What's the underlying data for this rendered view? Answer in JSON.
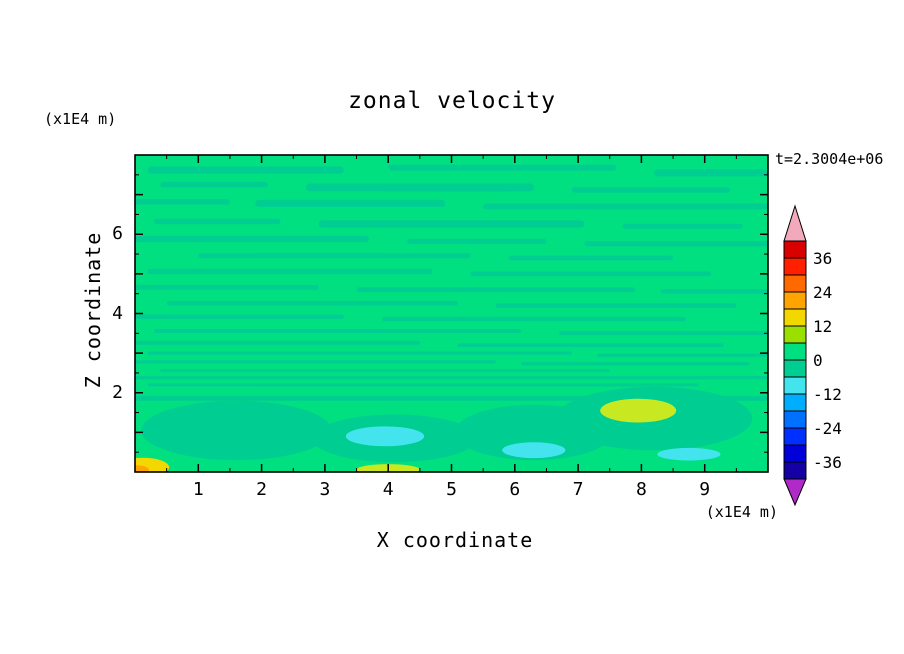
{
  "chart_data": {
    "type": "heatmap",
    "title": "zonal velocity",
    "xlabel": "X coordinate",
    "ylabel": "Z coordinate",
    "x_units": "(x1E4 m)",
    "y_units": "(x1E4 m)",
    "time_annotation": "t=2.3004e+06",
    "xlim": [
      0,
      10
    ],
    "ylim": [
      0,
      8
    ],
    "x_ticks": [
      1,
      2,
      3,
      4,
      5,
      6,
      7,
      8,
      9
    ],
    "y_ticks": [
      1,
      2,
      3,
      4,
      5,
      6,
      7
    ],
    "y_tick_labels": [
      2,
      4,
      6
    ],
    "contour_interval": 6,
    "grid": false,
    "legend_position": "right-colorbar",
    "colorbar": {
      "labels": [
        36,
        24,
        12,
        0,
        -12,
        -24,
        -36
      ],
      "segments": [
        {
          "range": [
            -42,
            -36
          ],
          "color": "#1500A5"
        },
        {
          "range": [
            -36,
            -30
          ],
          "color": "#0000D8"
        },
        {
          "range": [
            -30,
            -24
          ],
          "color": "#0030FF"
        },
        {
          "range": [
            -24,
            -18
          ],
          "color": "#0070FF"
        },
        {
          "range": [
            -18,
            -12
          ],
          "color": "#00AEFF"
        },
        {
          "range": [
            -12,
            -6
          ],
          "color": "#44E4EE"
        },
        {
          "range": [
            -6,
            0
          ],
          "color": "#00CD92"
        },
        {
          "range": [
            0,
            6
          ],
          "color": "#00E080"
        },
        {
          "range": [
            6,
            12
          ],
          "color": "#9ADF00"
        },
        {
          "range": [
            12,
            18
          ],
          "color": "#F2D800"
        },
        {
          "range": [
            18,
            24
          ],
          "color": "#FFA400"
        },
        {
          "range": [
            24,
            30
          ],
          "color": "#FF6A00"
        },
        {
          "range": [
            30,
            36
          ],
          "color": "#FF2000"
        },
        {
          "range": [
            36,
            42
          ],
          "color": "#D90000"
        }
      ],
      "arrow_low_color": "#B02AC8",
      "arrow_high_color": "#F2A9BC"
    },
    "field": {
      "description": "Zonal velocity field mostly near zero: base level 0..6 (green) with thin horizontal bands of -6..0 (teal-green) throughout; broader negative-band blobs below z=2 with small cyan (-12..-6) patches near the bottom; positive yellow (6..18) patches near x=8 z=1.5, near x=4 at the bottom edge, and at the bottom-left corner.",
      "base_value_range": [
        0,
        6
      ],
      "colors": {
        "base": "#00E080",
        "band": "#00CD92",
        "cyan": "#44E4EE",
        "yellow": "#C8E822",
        "yellow2": "#F2D800",
        "orange": "#FFA400"
      },
      "stripes": [
        [
          0.2,
          3.3,
          7.62,
          0.18
        ],
        [
          4.0,
          7.6,
          7.68,
          0.15
        ],
        [
          8.2,
          10,
          7.55,
          0.18
        ],
        [
          0.4,
          2.1,
          7.25,
          0.14
        ],
        [
          2.7,
          6.3,
          7.18,
          0.2
        ],
        [
          6.9,
          9.4,
          7.12,
          0.14
        ],
        [
          0.0,
          1.5,
          6.82,
          0.14
        ],
        [
          1.9,
          4.9,
          6.78,
          0.18
        ],
        [
          5.5,
          10,
          6.7,
          0.15
        ],
        [
          0.3,
          2.3,
          6.32,
          0.14
        ],
        [
          2.9,
          7.1,
          6.26,
          0.18
        ],
        [
          7.7,
          9.6,
          6.2,
          0.13
        ],
        [
          0.0,
          3.7,
          5.88,
          0.16
        ],
        [
          4.3,
          6.5,
          5.82,
          0.13
        ],
        [
          7.1,
          10,
          5.76,
          0.13
        ],
        [
          1.0,
          5.3,
          5.46,
          0.13
        ],
        [
          5.9,
          8.5,
          5.4,
          0.12
        ],
        [
          0.2,
          4.7,
          5.06,
          0.13
        ],
        [
          5.3,
          9.1,
          5.0,
          0.12
        ],
        [
          0.0,
          2.9,
          4.66,
          0.12
        ],
        [
          3.5,
          7.9,
          4.6,
          0.12
        ],
        [
          8.3,
          10,
          4.56,
          0.11
        ],
        [
          0.5,
          5.1,
          4.26,
          0.11
        ],
        [
          5.7,
          9.5,
          4.2,
          0.11
        ],
        [
          0.0,
          3.3,
          3.92,
          0.11
        ],
        [
          3.9,
          8.7,
          3.86,
          0.11
        ],
        [
          0.3,
          6.1,
          3.56,
          0.1
        ],
        [
          6.7,
          10,
          3.5,
          0.1
        ],
        [
          0.0,
          4.5,
          3.26,
          0.1
        ],
        [
          5.1,
          9.3,
          3.2,
          0.09
        ],
        [
          0.2,
          6.9,
          3.0,
          0.08
        ],
        [
          7.3,
          10,
          2.95,
          0.08
        ],
        [
          0.0,
          5.7,
          2.78,
          0.08
        ],
        [
          6.1,
          9.7,
          2.73,
          0.08
        ],
        [
          0.4,
          7.5,
          2.56,
          0.08
        ],
        [
          0.0,
          10,
          2.38,
          0.08
        ],
        [
          0.2,
          8.9,
          2.2,
          0.08
        ],
        [
          0.0,
          10,
          1.86,
          0.12
        ]
      ],
      "blobs": [
        [
          1.6,
          1.05,
          1.5,
          0.75,
          "band"
        ],
        [
          4.1,
          0.85,
          1.3,
          0.6,
          "band"
        ],
        [
          6.3,
          1.0,
          1.25,
          0.7,
          "band"
        ],
        [
          8.2,
          1.35,
          1.55,
          0.8,
          "band"
        ],
        [
          3.95,
          0.9,
          0.62,
          0.25,
          "cyan"
        ],
        [
          6.3,
          0.55,
          0.5,
          0.2,
          "cyan"
        ],
        [
          8.75,
          0.45,
          0.5,
          0.16,
          "cyan"
        ],
        [
          7.95,
          1.55,
          0.6,
          0.3,
          "yellow"
        ],
        [
          4.0,
          0.06,
          0.5,
          0.14,
          "yellow"
        ],
        [
          0.12,
          0.12,
          0.42,
          0.24,
          "yellow2"
        ],
        [
          0.02,
          0.05,
          0.2,
          0.12,
          "orange"
        ]
      ]
    }
  }
}
